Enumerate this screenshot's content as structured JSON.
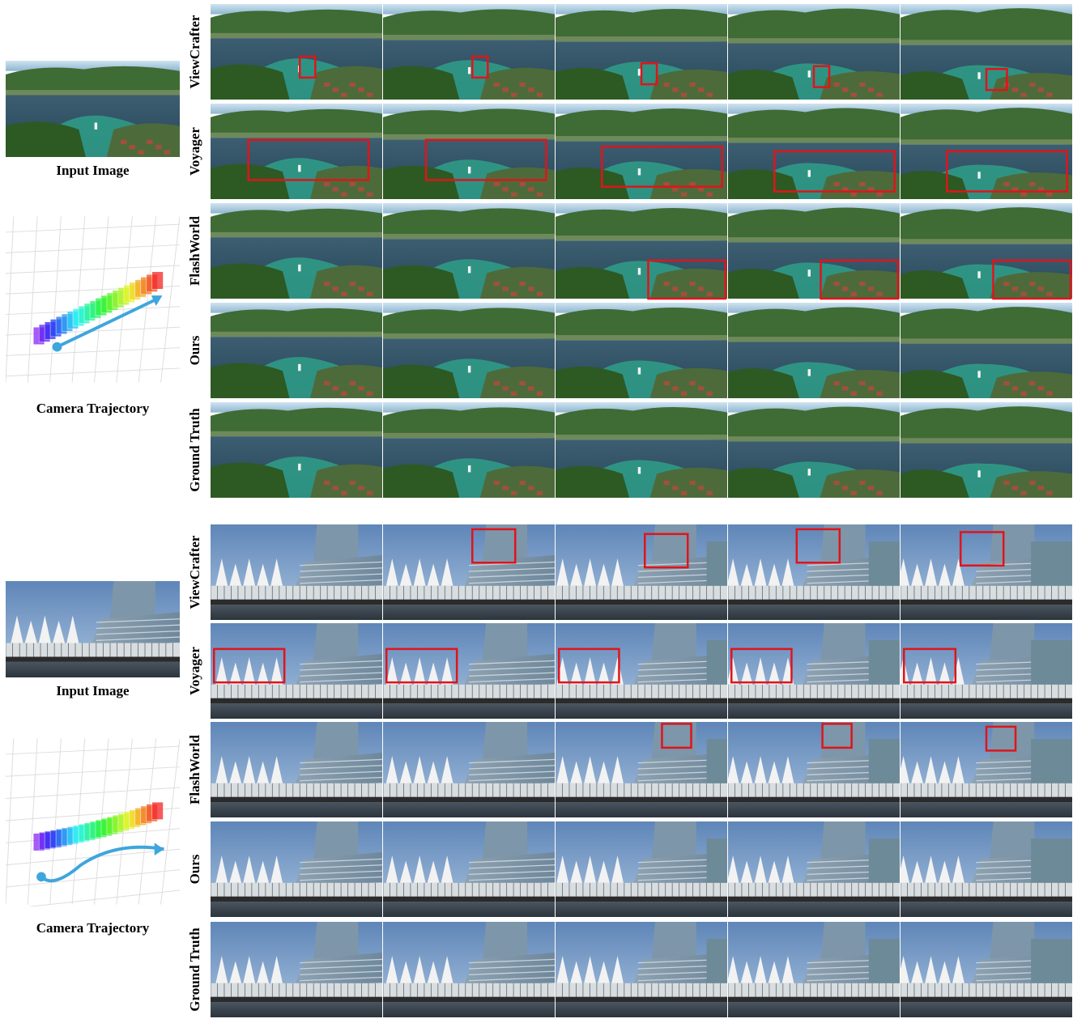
{
  "blocks": [
    {
      "input_label": "Input Image",
      "trajectory_label": "Camera Trajectory",
      "rows": [
        "ViewCrafter",
        "Voyager",
        "FlashWorld",
        "Ours",
        "Ground Truth"
      ]
    },
    {
      "input_label": "Input Image",
      "trajectory_label": "Camera Trajectory",
      "rows": [
        "ViewCrafter",
        "Voyager",
        "FlashWorld",
        "Ours",
        "Ground Truth"
      ]
    }
  ]
}
